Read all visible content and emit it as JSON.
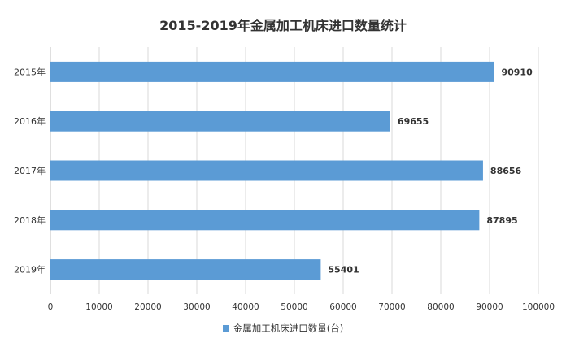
{
  "chart_data": {
    "type": "bar",
    "orientation": "horizontal",
    "title": "2015-2019年金属加工机床进口数量统计",
    "categories": [
      "2015年",
      "2016年",
      "2017年",
      "2018年",
      "2019年"
    ],
    "series": [
      {
        "name": "金属加工机床进口数量(台)",
        "values": [
          90910,
          69655,
          88656,
          87895,
          55401
        ],
        "color": "#5b9bd5"
      }
    ],
    "xlim": [
      0,
      100000
    ],
    "xticks": [
      0,
      10000,
      20000,
      30000,
      40000,
      50000,
      60000,
      70000,
      80000,
      90000,
      100000
    ],
    "xlabel": "",
    "ylabel": "",
    "grid": "vertical",
    "legend_position": "bottom",
    "data_labels": true
  }
}
